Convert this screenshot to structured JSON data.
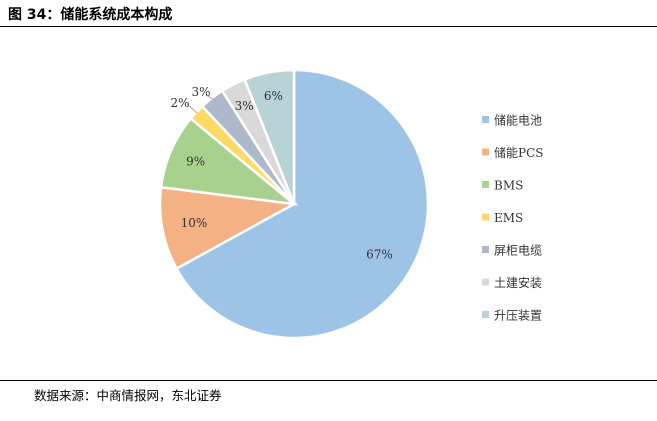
{
  "figure": {
    "title": "图 34：储能系统成本构成",
    "source": "数据来源：中商情报网，东北证券"
  },
  "chart_data": {
    "type": "pie",
    "start_angle_deg": 0,
    "direction": "clockwise",
    "legend_position": "right",
    "categories": [
      "储能电池",
      "储能PCS",
      "BMS",
      "EMS",
      "屏柜电缆",
      "土建安装",
      "升压装置"
    ],
    "values": [
      67,
      10,
      9,
      2,
      3,
      3,
      6
    ],
    "labels": [
      "67%",
      "10%",
      "9%",
      "2%",
      "3%",
      "3%",
      "6%"
    ],
    "colors": [
      "#9dc3e6",
      "#f4b183",
      "#a9d18e",
      "#ffd966",
      "#adb9ca",
      "#d9d9d9",
      "#b8d2d6"
    ]
  }
}
